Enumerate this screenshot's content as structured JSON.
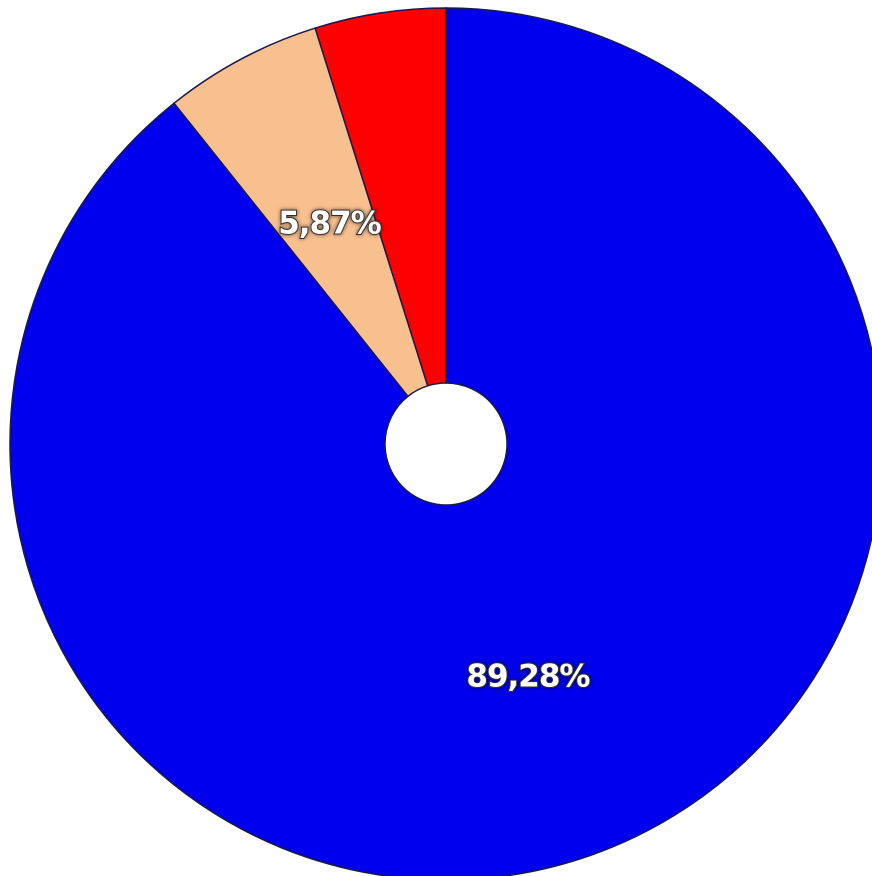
{
  "chart_data": {
    "type": "pie",
    "values": [
      89.28,
      5.87,
      4.85
    ],
    "value_labels": [
      "89,28%",
      "5,87%",
      null
    ],
    "colors": [
      "#0000ee",
      "#f9c08f",
      "#ff0000"
    ],
    "donut": true
  }
}
